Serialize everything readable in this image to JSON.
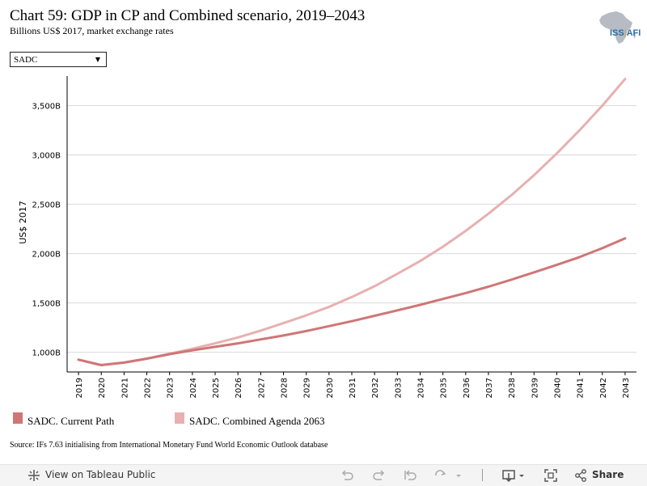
{
  "header": {
    "title": "Chart 59: GDP in CP and Combined scenario, 2019–2043",
    "subtitle": "Billions US$ 2017, market exchange rates",
    "logo_text_main": "ISS",
    "logo_text_rest": "AFI",
    "logo_sep": "|"
  },
  "filter": {
    "selected": "SADC"
  },
  "colors": {
    "current_path": "#cf7676",
    "combined": "#e8b0b0",
    "grid": "#d9d9d9",
    "axis": "#000000"
  },
  "chart_data": {
    "type": "line",
    "title": "Chart 59: GDP in CP and Combined scenario, 2019–2043",
    "subtitle": "Billions US$ 2017, market exchange rates",
    "xlabel": "",
    "ylabel": "US$ 2017",
    "ylim": [
      800,
      3800
    ],
    "yticks": [
      1000,
      1500,
      2000,
      2500,
      3000,
      3500
    ],
    "ytick_labels": [
      "1,000B",
      "1,500B",
      "2,000B",
      "2,500B",
      "3,000B",
      "3,500B"
    ],
    "grid": "horizontal",
    "legend_position": "bottom-left",
    "x": [
      "2019",
      "2020",
      "2021",
      "2022",
      "2023",
      "2024",
      "2025",
      "2026",
      "2027",
      "2028",
      "2029",
      "2030",
      "2031",
      "2032",
      "2033",
      "2034",
      "2035",
      "2036",
      "2037",
      "2038",
      "2039",
      "2040",
      "2041",
      "2042",
      "2043"
    ],
    "series": [
      {
        "name": "SADC. Current Path",
        "color": "#cf7676",
        "values": [
          925,
          870,
          895,
          935,
          980,
          1020,
          1055,
          1090,
          1130,
          1170,
          1215,
          1265,
          1315,
          1370,
          1425,
          1480,
          1540,
          1600,
          1665,
          1735,
          1810,
          1885,
          1965,
          2055,
          2155
        ]
      },
      {
        "name": "SADC. Combined Agenda 2063",
        "color": "#e8b0b0",
        "values": [
          925,
          870,
          895,
          935,
          985,
          1035,
          1090,
          1150,
          1220,
          1295,
          1375,
          1460,
          1560,
          1670,
          1795,
          1925,
          2070,
          2230,
          2405,
          2590,
          2795,
          3015,
          3250,
          3500,
          3770
        ]
      }
    ]
  },
  "legend": [
    {
      "label": "SADC. Current Path"
    },
    {
      "label": "SADC. Combined Agenda 2063"
    }
  ],
  "source": "Source: IFs 7.63 initialising from International Monetary Fund World Economic Outlook database",
  "toolbar": {
    "view_label": "View on Tableau Public",
    "share_label": "Share",
    "icons": [
      "tableau-icon",
      "undo-icon",
      "redo-icon",
      "revert-icon",
      "refresh-icon",
      "download-icon",
      "fullscreen-icon",
      "share-icon"
    ]
  }
}
